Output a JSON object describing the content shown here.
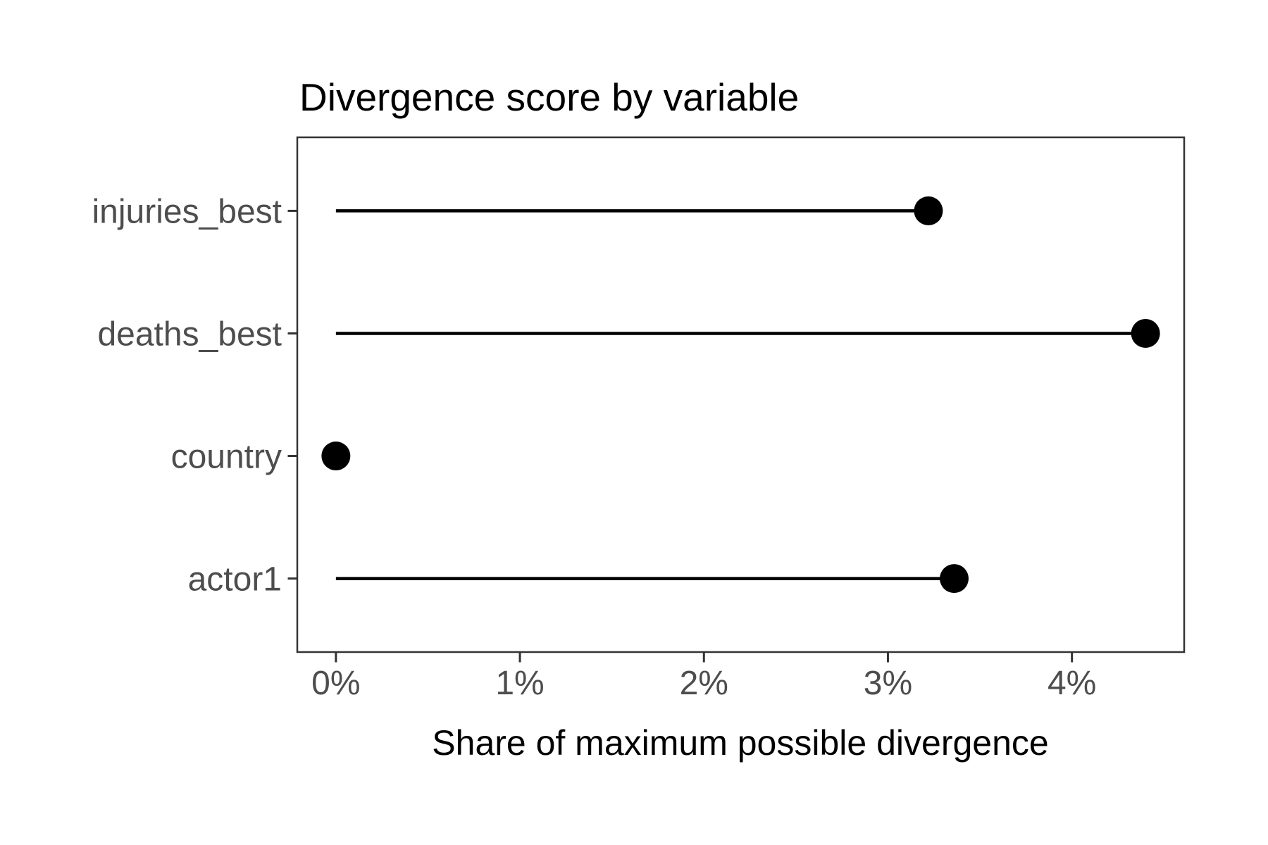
{
  "chart_data": {
    "type": "bar",
    "variant": "horizontal-lollipop",
    "title": "Divergence score by variable",
    "xlabel": "Share of maximum possible divergence",
    "ylabel": "",
    "categories": [
      "injuries_best",
      "deaths_best",
      "country",
      "actor1"
    ],
    "values": [
      3.22,
      4.4,
      0.0,
      3.36
    ],
    "value_unit": "percent",
    "orientation": "horizontal",
    "xlim": [
      -0.21,
      4.61
    ],
    "x_ticks": [
      {
        "value": 0,
        "label": "0%"
      },
      {
        "value": 1,
        "label": "1%"
      },
      {
        "value": 2,
        "label": "2%"
      },
      {
        "value": 3,
        "label": "3%"
      },
      {
        "value": 4,
        "label": "4%"
      }
    ],
    "grid": "off",
    "legend": "none",
    "colors": {
      "point": "#000000",
      "stem": "#000000",
      "panel_border": "#333333",
      "tick_mark": "#333333",
      "axis_text": "#4D4D4D",
      "title_text": "#000000",
      "axis_title_text": "#000000",
      "background": "#FFFFFF"
    }
  }
}
